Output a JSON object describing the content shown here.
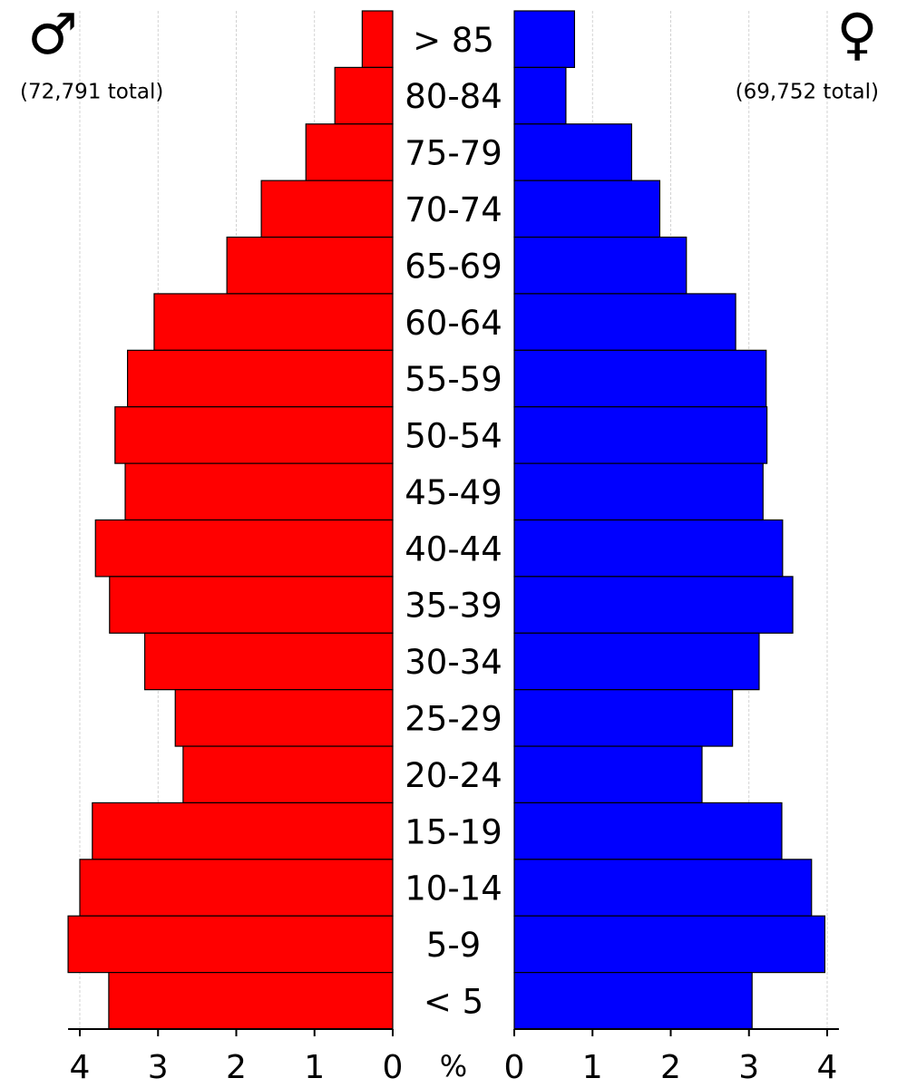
{
  "chart_data": {
    "type": "pyramid",
    "categories": [
      "> 85",
      "80-84",
      "75-79",
      "70-74",
      "65-69",
      "60-64",
      "55-59",
      "50-54",
      "45-49",
      "40-44",
      "35-39",
      "30-34",
      "25-29",
      "20-24",
      "15-19",
      "10-14",
      "5-9",
      "< 5"
    ],
    "series": [
      {
        "name": "♂",
        "total": "(72,791 total)",
        "side": "left",
        "color": "#ff0000",
        "values": [
          0.39,
          0.74,
          1.11,
          1.68,
          2.12,
          3.05,
          3.39,
          3.55,
          3.42,
          3.8,
          3.62,
          3.17,
          2.78,
          2.68,
          3.84,
          4.0,
          4.15,
          3.63
        ]
      },
      {
        "name": "♀",
        "total": "(69,752 total)",
        "side": "right",
        "color": "#0000ff",
        "values": [
          0.77,
          0.66,
          1.5,
          1.86,
          2.2,
          2.83,
          3.22,
          3.23,
          3.18,
          3.43,
          3.56,
          3.13,
          2.79,
          2.4,
          3.42,
          3.8,
          3.97,
          3.04
        ]
      }
    ],
    "x_label": "%",
    "xlim": [
      0,
      4.15
    ],
    "xticks": [
      0,
      1,
      2,
      3,
      4
    ],
    "grid": true
  }
}
